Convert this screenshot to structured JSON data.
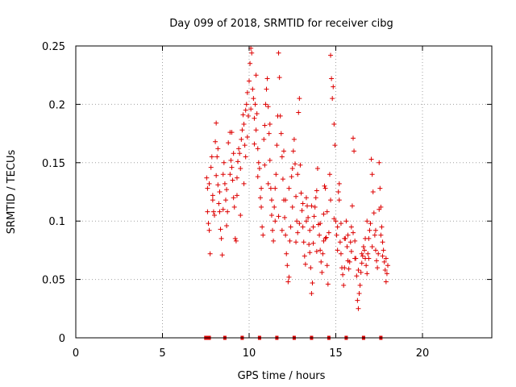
{
  "chart_data": {
    "type": "scatter",
    "title": "Day 099 of 2018, SRMTID for receiver cibg",
    "xlabel": "GPS time / hours",
    "ylabel": "SRMTID / TECUs",
    "xlim": [
      0,
      24
    ],
    "ylim": [
      0,
      0.25
    ],
    "x_ticks": [
      0,
      5,
      10,
      15,
      20
    ],
    "y_ticks": [
      0,
      0.05,
      0.1,
      0.15,
      0.2,
      0.25
    ],
    "x_tick_labels": [
      "0",
      "5",
      "10",
      "15",
      "20"
    ],
    "y_tick_labels": [
      "0",
      "0.05",
      "0.1",
      "0.15",
      "0.2",
      "0.25"
    ],
    "grid": true,
    "marker": "+",
    "colors": {
      "series": "#dd0000",
      "grid": "#a0a0a0",
      "axis": "#000000"
    },
    "baseline_markers_x": [
      7.5,
      7.6,
      7.7,
      8.6,
      9.6,
      10.6,
      11.6,
      12.6,
      13.6,
      14.6,
      15.6,
      16.6,
      17.6
    ],
    "series": [
      {
        "name": "SRMTID",
        "points": [
          [
            7.55,
            0.137
          ],
          [
            7.6,
            0.128
          ],
          [
            7.65,
            0.098
          ],
          [
            7.7,
            0.092
          ],
          [
            7.75,
            0.072
          ],
          [
            7.8,
            0.146
          ],
          [
            7.85,
            0.155
          ],
          [
            7.9,
            0.122
          ],
          [
            7.95,
            0.108
          ],
          [
            8.0,
            0.105
          ],
          [
            8.05,
            0.168
          ],
          [
            8.1,
            0.184
          ],
          [
            8.15,
            0.155
          ],
          [
            8.2,
            0.131
          ],
          [
            8.25,
            0.115
          ],
          [
            8.3,
            0.108
          ],
          [
            8.35,
            0.093
          ],
          [
            8.4,
            0.085
          ],
          [
            8.45,
            0.071
          ],
          [
            8.5,
            0.14
          ],
          [
            8.55,
            0.15
          ],
          [
            8.6,
            0.132
          ],
          [
            8.65,
            0.118
          ],
          [
            8.7,
            0.127
          ],
          [
            8.75,
            0.108
          ],
          [
            8.8,
            0.167
          ],
          [
            8.9,
            0.176
          ],
          [
            8.95,
            0.152
          ],
          [
            9.0,
            0.146
          ],
          [
            9.05,
            0.135
          ],
          [
            9.1,
            0.12
          ],
          [
            9.15,
            0.112
          ],
          [
            9.2,
            0.085
          ],
          [
            9.25,
            0.083
          ],
          [
            9.3,
            0.137
          ],
          [
            9.35,
            0.151
          ],
          [
            9.4,
            0.162
          ],
          [
            9.45,
            0.158
          ],
          [
            9.5,
            0.145
          ],
          [
            9.55,
            0.17
          ],
          [
            9.6,
            0.178
          ],
          [
            9.65,
            0.191
          ],
          [
            9.7,
            0.183
          ],
          [
            9.75,
            0.165
          ],
          [
            9.8,
            0.155
          ],
          [
            9.85,
            0.2
          ],
          [
            9.9,
            0.21
          ],
          [
            9.95,
            0.19
          ],
          [
            10.0,
            0.22
          ],
          [
            10.05,
            0.235
          ],
          [
            10.1,
            0.248
          ],
          [
            10.15,
            0.244
          ],
          [
            10.2,
            0.213
          ],
          [
            10.25,
            0.205
          ],
          [
            10.3,
            0.188
          ],
          [
            10.35,
            0.2
          ],
          [
            10.4,
            0.178
          ],
          [
            10.45,
            0.192
          ],
          [
            10.5,
            0.162
          ],
          [
            10.55,
            0.15
          ],
          [
            10.6,
            0.145
          ],
          [
            10.65,
            0.12
          ],
          [
            10.7,
            0.112
          ],
          [
            10.75,
            0.095
          ],
          [
            10.8,
            0.088
          ],
          [
            10.85,
            0.17
          ],
          [
            10.9,
            0.182
          ],
          [
            10.95,
            0.2
          ],
          [
            11.0,
            0.213
          ],
          [
            11.05,
            0.222
          ],
          [
            11.1,
            0.198
          ],
          [
            11.15,
            0.175
          ],
          [
            11.2,
            0.152
          ],
          [
            11.25,
            0.128
          ],
          [
            11.3,
            0.105
          ],
          [
            11.35,
            0.092
          ],
          [
            11.4,
            0.083
          ],
          [
            11.45,
            0.112
          ],
          [
            11.5,
            0.128
          ],
          [
            11.55,
            0.14
          ],
          [
            11.6,
            0.165
          ],
          [
            11.65,
            0.19
          ],
          [
            11.7,
            0.244
          ],
          [
            11.75,
            0.223
          ],
          [
            11.8,
            0.19
          ],
          [
            11.85,
            0.175
          ],
          [
            11.9,
            0.155
          ],
          [
            11.95,
            0.136
          ],
          [
            12.0,
            0.118
          ],
          [
            12.05,
            0.103
          ],
          [
            12.1,
            0.088
          ],
          [
            12.15,
            0.072
          ],
          [
            12.2,
            0.062
          ],
          [
            12.25,
            0.048
          ],
          [
            12.3,
            0.052
          ],
          [
            12.35,
            0.083
          ],
          [
            12.4,
            0.095
          ],
          [
            12.45,
            0.138
          ],
          [
            12.5,
            0.145
          ],
          [
            12.55,
            0.16
          ],
          [
            12.6,
            0.17
          ],
          [
            12.65,
            0.149
          ],
          [
            12.7,
            0.121
          ],
          [
            12.75,
            0.1
          ],
          [
            12.8,
            0.09
          ],
          [
            12.85,
            0.193
          ],
          [
            12.9,
            0.205
          ],
          [
            12.95,
            0.148
          ],
          [
            13.0,
            0.124
          ],
          [
            13.05,
            0.109
          ],
          [
            13.1,
            0.095
          ],
          [
            13.15,
            0.082
          ],
          [
            13.2,
            0.07
          ],
          [
            13.25,
            0.063
          ],
          [
            13.3,
            0.12
          ],
          [
            13.35,
            0.113
          ],
          [
            13.4,
            0.103
          ],
          [
            13.45,
            0.08
          ],
          [
            13.5,
            0.073
          ],
          [
            13.55,
            0.06
          ],
          [
            13.6,
            0.038
          ],
          [
            13.65,
            0.047
          ],
          [
            13.7,
            0.095
          ],
          [
            13.75,
            0.104
          ],
          [
            13.8,
            0.112
          ],
          [
            13.85,
            0.12
          ],
          [
            13.9,
            0.126
          ],
          [
            13.95,
            0.145
          ],
          [
            14.0,
            0.097
          ],
          [
            14.05,
            0.088
          ],
          [
            14.1,
            0.075
          ],
          [
            14.15,
            0.065
          ],
          [
            14.2,
            0.056
          ],
          [
            14.25,
            0.072
          ],
          [
            14.3,
            0.083
          ],
          [
            14.35,
            0.13
          ],
          [
            14.4,
            0.128
          ],
          [
            14.45,
            0.086
          ],
          [
            14.5,
            0.062
          ],
          [
            14.55,
            0.046
          ],
          [
            14.6,
            0.09
          ],
          [
            14.65,
            0.14
          ],
          [
            14.7,
            0.242
          ],
          [
            14.75,
            0.222
          ],
          [
            14.8,
            0.205
          ],
          [
            14.85,
            0.215
          ],
          [
            14.9,
            0.183
          ],
          [
            14.95,
            0.165
          ],
          [
            15.0,
            0.1
          ],
          [
            15.05,
            0.088
          ],
          [
            15.1,
            0.075
          ],
          [
            15.15,
            0.125
          ],
          [
            15.2,
            0.132
          ],
          [
            15.25,
            0.082
          ],
          [
            15.3,
            0.072
          ],
          [
            15.35,
            0.06
          ],
          [
            15.4,
            0.054
          ],
          [
            15.45,
            0.045
          ],
          [
            15.5,
            0.06
          ],
          [
            15.55,
            0.085
          ],
          [
            15.6,
            0.1
          ],
          [
            15.65,
            0.078
          ],
          [
            15.7,
            0.066
          ],
          [
            15.75,
            0.059
          ],
          [
            15.8,
            0.065
          ],
          [
            15.85,
            0.082
          ],
          [
            15.9,
            0.095
          ],
          [
            15.95,
            0.113
          ],
          [
            16.0,
            0.171
          ],
          [
            16.05,
            0.16
          ],
          [
            16.1,
            0.083
          ],
          [
            16.15,
            0.068
          ],
          [
            16.2,
            0.053
          ],
          [
            16.25,
            0.032
          ],
          [
            16.3,
            0.025
          ],
          [
            16.35,
            0.038
          ],
          [
            16.4,
            0.045
          ],
          [
            16.45,
            0.056
          ],
          [
            16.5,
            0.064
          ],
          [
            16.55,
            0.07
          ],
          [
            16.6,
            0.078
          ],
          [
            16.65,
            0.075
          ],
          [
            16.7,
            0.068
          ],
          [
            16.75,
            0.062
          ],
          [
            16.8,
            0.055
          ],
          [
            16.85,
            0.072
          ],
          [
            16.9,
            0.085
          ],
          [
            16.95,
            0.092
          ],
          [
            17.0,
            0.098
          ],
          [
            17.05,
            0.153
          ],
          [
            17.1,
            0.14
          ],
          [
            17.15,
            0.125
          ],
          [
            17.2,
            0.107
          ],
          [
            17.25,
            0.088
          ],
          [
            17.3,
            0.075
          ],
          [
            17.35,
            0.066
          ],
          [
            17.4,
            0.06
          ],
          [
            17.45,
            0.072
          ],
          [
            17.5,
            0.15
          ],
          [
            17.55,
            0.128
          ],
          [
            17.6,
            0.112
          ],
          [
            17.65,
            0.095
          ],
          [
            17.7,
            0.082
          ],
          [
            17.75,
            0.075
          ],
          [
            17.8,
            0.065
          ],
          [
            17.85,
            0.058
          ],
          [
            17.9,
            0.048
          ],
          [
            17.95,
            0.055
          ],
          [
            18.0,
            0.062
          ],
          [
            7.6,
            0.108
          ],
          [
            7.7,
            0.132
          ],
          [
            7.9,
            0.118
          ],
          [
            8.1,
            0.139
          ],
          [
            8.3,
            0.125
          ],
          [
            8.5,
            0.11
          ],
          [
            8.7,
            0.096
          ],
          [
            8.9,
            0.14
          ],
          [
            9.1,
            0.158
          ],
          [
            9.3,
            0.122
          ],
          [
            9.5,
            0.105
          ],
          [
            9.7,
            0.132
          ],
          [
            9.9,
            0.172
          ],
          [
            10.1,
            0.196
          ],
          [
            10.3,
            0.166
          ],
          [
            10.5,
            0.138
          ],
          [
            10.7,
            0.128
          ],
          [
            10.9,
            0.148
          ],
          [
            11.1,
            0.132
          ],
          [
            11.3,
            0.118
          ],
          [
            11.5,
            0.1
          ],
          [
            11.7,
            0.104
          ],
          [
            11.9,
            0.092
          ],
          [
            12.1,
            0.118
          ],
          [
            12.3,
            0.128
          ],
          [
            12.5,
            0.112
          ],
          [
            12.7,
            0.082
          ],
          [
            12.9,
            0.098
          ],
          [
            13.1,
            0.115
          ],
          [
            13.3,
            0.1
          ],
          [
            13.5,
            0.092
          ],
          [
            13.7,
            0.081
          ],
          [
            13.9,
            0.074
          ],
          [
            14.1,
            0.098
          ],
          [
            14.3,
            0.106
          ],
          [
            14.5,
            0.108
          ],
          [
            14.7,
            0.118
          ],
          [
            14.9,
            0.102
          ],
          [
            15.1,
            0.095
          ],
          [
            15.3,
            0.098
          ],
          [
            15.5,
            0.085
          ],
          [
            15.7,
            0.088
          ],
          [
            15.9,
            0.074
          ],
          [
            16.1,
            0.068
          ],
          [
            16.3,
            0.058
          ],
          [
            16.5,
            0.072
          ],
          [
            16.7,
            0.085
          ],
          [
            16.9,
            0.068
          ],
          [
            17.1,
            0.078
          ],
          [
            17.3,
            0.092
          ],
          [
            17.5,
            0.11
          ],
          [
            17.7,
            0.07
          ],
          [
            17.9,
            0.068
          ],
          [
            8.2,
            0.162
          ],
          [
            9.0,
            0.176
          ],
          [
            9.8,
            0.195
          ],
          [
            10.4,
            0.225
          ],
          [
            11.2,
            0.183
          ],
          [
            12.0,
            0.16
          ],
          [
            12.8,
            0.14
          ],
          [
            13.6,
            0.113
          ],
          [
            14.4,
            0.085
          ],
          [
            15.2,
            0.118
          ],
          [
            16.0,
            0.09
          ],
          [
            16.8,
            0.1
          ],
          [
            17.6,
            0.088
          ]
        ]
      }
    ]
  }
}
